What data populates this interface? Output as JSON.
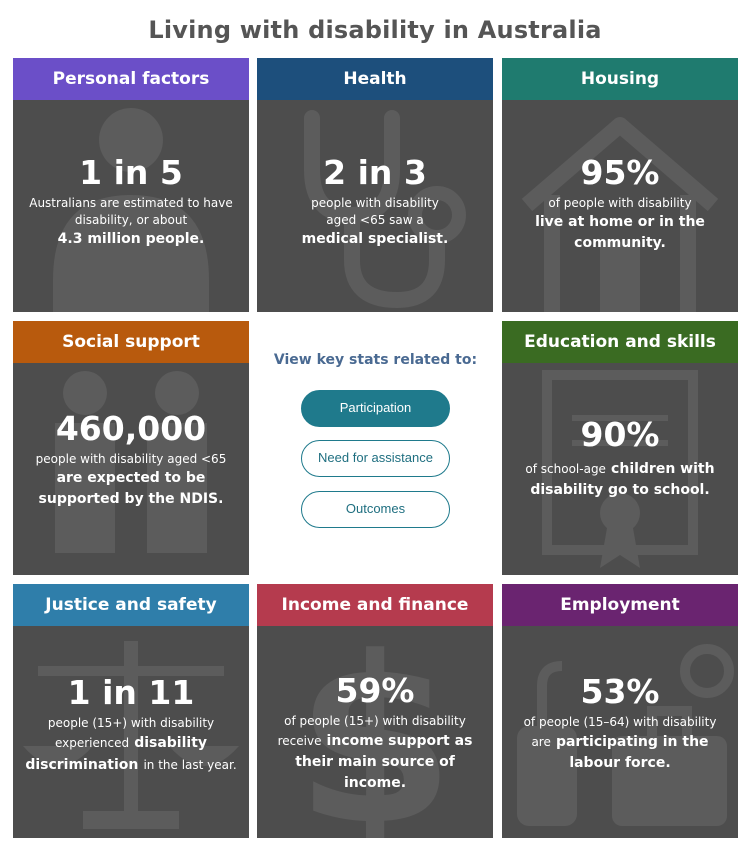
{
  "title": "Living with disability in Australia",
  "tiles": [
    {
      "header": "Personal factors",
      "color": "#6b4fc8",
      "icon": "person-icon",
      "big": "1 in 5",
      "lines": [
        "Australians are estimated to have",
        "disability, or about",
        "4.3 million people."
      ]
    },
    {
      "header": "Health",
      "color": "#1d4f7c",
      "icon": "stethoscope-icon",
      "big": "2 in 3",
      "lines": [
        "people with disability",
        "aged <65 saw a",
        "medical specialist."
      ]
    },
    {
      "header": "Housing",
      "color": "#1f7b6f",
      "icon": "house-icon",
      "big": "95%",
      "lines": [
        "of people with disability",
        "live at home or in the",
        "community."
      ]
    },
    {
      "header": "Social support",
      "color": "#b85a0d",
      "icon": "people-icon",
      "big": "460,000",
      "lines": [
        "people with disability aged <65",
        "are expected to be",
        "supported by the NDIS."
      ]
    },
    {
      "header": "Education and skills",
      "color": "#3a6b22",
      "icon": "certificate-icon",
      "big": "90%",
      "lines": [
        "of school-age",
        "children with",
        "disability go to school."
      ]
    },
    {
      "header": "Justice and safety",
      "color": "#2f7eaa",
      "icon": "scales-icon",
      "big": "1 in 11",
      "lines": [
        "people (15+) with disability",
        "experienced",
        "disability",
        "discrimination",
        "in the last year."
      ]
    },
    {
      "header": "Income and finance",
      "color": "#b53b4e",
      "icon": "dollar-icon",
      "big": "59%",
      "lines": [
        "of people (15+) with disability",
        "receive",
        "income support as",
        "their main source of income."
      ]
    },
    {
      "header": "Employment",
      "color": "#6a2470",
      "icon": "tools-icon",
      "big": "53%",
      "lines": [
        "of people (15–64) with disability",
        "are",
        "participating in the",
        "labour force."
      ]
    }
  ],
  "middle": {
    "label": "View key stats related to:",
    "buttons": [
      "Participation",
      "Need for assistance",
      "Outcomes"
    ],
    "active_button": "Participation"
  }
}
